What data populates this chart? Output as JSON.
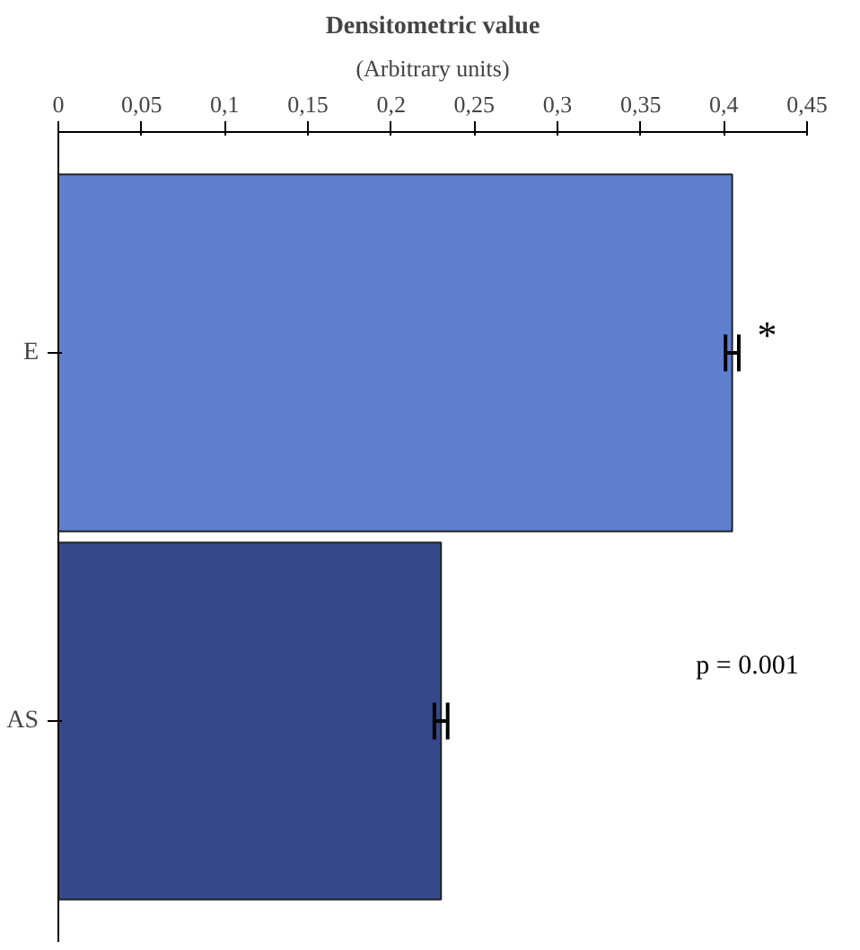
{
  "chart_data": {
    "type": "bar",
    "orientation": "horizontal",
    "title": "Densitometric value",
    "xlabel": "(Arbitrary units)",
    "categories": [
      "E",
      "AS"
    ],
    "values": [
      0.405,
      0.23
    ],
    "errors": [
      0.004,
      0.004
    ],
    "colors": [
      "#5f7fcf",
      "#34488a"
    ],
    "xlim": [
      0,
      0.45
    ],
    "xticks": [
      0,
      {
        "value": 0.05,
        "label": "0,05"
      },
      {
        "value": 0.1,
        "label": "0,1"
      },
      {
        "value": 0.15,
        "label": "0,15"
      },
      {
        "value": 0.2,
        "label": "0,2"
      },
      {
        "value": 0.25,
        "label": "0,25"
      },
      {
        "value": 0.3,
        "label": "0,3"
      },
      {
        "value": 0.35,
        "label": "0,35"
      },
      {
        "value": 0.4,
        "label": "0,4"
      },
      {
        "value": 0.45,
        "label": "0,45"
      }
    ],
    "annotations": [
      "*",
      "p = 0.001"
    ],
    "grid": false
  }
}
